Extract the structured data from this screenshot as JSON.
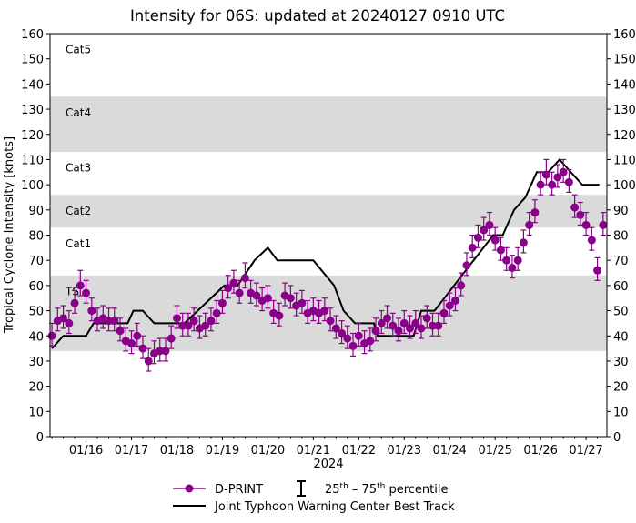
{
  "chart_data": {
    "type": "scatter",
    "title": "Intensity for 06S: updated at 20240127 0910 UTC",
    "xlabel": "2024",
    "ylabel": "Tropical Cyclone Intensity [knots]",
    "xlim": [
      "2024-01-15T05:00",
      "2024-01-27T11:00"
    ],
    "ylim": [
      0,
      160
    ],
    "x_ticks": [
      {
        "t": "2024-01-16T00:00",
        "label": "01/16"
      },
      {
        "t": "2024-01-17T00:00",
        "label": "01/17"
      },
      {
        "t": "2024-01-18T00:00",
        "label": "01/18"
      },
      {
        "t": "2024-01-19T00:00",
        "label": "01/19"
      },
      {
        "t": "2024-01-20T00:00",
        "label": "01/20"
      },
      {
        "t": "2024-01-21T00:00",
        "label": "01/21"
      },
      {
        "t": "2024-01-22T00:00",
        "label": "01/22"
      },
      {
        "t": "2024-01-23T00:00",
        "label": "01/23"
      },
      {
        "t": "2024-01-24T00:00",
        "label": "01/24"
      },
      {
        "t": "2024-01-25T00:00",
        "label": "01/25"
      },
      {
        "t": "2024-01-26T00:00",
        "label": "01/26"
      },
      {
        "t": "2024-01-27T00:00",
        "label": "01/27"
      }
    ],
    "y_ticks": [
      0,
      10,
      20,
      30,
      40,
      50,
      60,
      70,
      80,
      90,
      100,
      110,
      120,
      130,
      140,
      150,
      160
    ],
    "grid": false,
    "category_bands": [
      {
        "label": "TS",
        "from": 34,
        "to": 64,
        "shaded": true
      },
      {
        "label": "Cat1",
        "from": 64,
        "to": 83,
        "shaded": false
      },
      {
        "label": "Cat2",
        "from": 83,
        "to": 96,
        "shaded": true
      },
      {
        "label": "Cat3",
        "from": 96,
        "to": 113,
        "shaded": false
      },
      {
        "label": "Cat4",
        "from": 113,
        "to": 135,
        "shaded": true
      },
      {
        "label": "Cat5",
        "from": 135,
        "to": 160,
        "shaded": false
      }
    ],
    "band_color": "#dadada",
    "legend": {
      "placement": "bottom",
      "dprint": "D-PRINT",
      "percentile_prefix_a": "25",
      "percentile_sup_a": "th",
      "percentile_dash": " – ",
      "percentile_prefix_b": "75",
      "percentile_sup_b": "th",
      "percentile_suffix": " percentile",
      "best_track": "Joint Typhoon Warning Center Best Track"
    },
    "series": [
      {
        "name": "D-PRINT",
        "color": "#8b008b",
        "times": [
          "2024-01-15T06:00",
          "2024-01-15T09:00",
          "2024-01-15T12:00",
          "2024-01-15T15:00",
          "2024-01-15T18:00",
          "2024-01-15T21:00",
          "2024-01-16T00:00",
          "2024-01-16T03:00",
          "2024-01-16T06:00",
          "2024-01-16T09:00",
          "2024-01-16T12:00",
          "2024-01-16T15:00",
          "2024-01-16T18:00",
          "2024-01-16T21:00",
          "2024-01-17T00:00",
          "2024-01-17T03:00",
          "2024-01-17T06:00",
          "2024-01-17T09:00",
          "2024-01-17T12:00",
          "2024-01-17T15:00",
          "2024-01-17T18:00",
          "2024-01-17T21:00",
          "2024-01-18T00:00",
          "2024-01-18T03:00",
          "2024-01-18T06:00",
          "2024-01-18T09:00",
          "2024-01-18T12:00",
          "2024-01-18T15:00",
          "2024-01-18T18:00",
          "2024-01-18T21:00",
          "2024-01-19T00:00",
          "2024-01-19T03:00",
          "2024-01-19T06:00",
          "2024-01-19T09:00",
          "2024-01-19T12:00",
          "2024-01-19T15:00",
          "2024-01-19T18:00",
          "2024-01-19T21:00",
          "2024-01-20T00:00",
          "2024-01-20T03:00",
          "2024-01-20T06:00",
          "2024-01-20T09:00",
          "2024-01-20T12:00",
          "2024-01-20T15:00",
          "2024-01-20T18:00",
          "2024-01-20T21:00",
          "2024-01-21T00:00",
          "2024-01-21T03:00",
          "2024-01-21T06:00",
          "2024-01-21T09:00",
          "2024-01-21T12:00",
          "2024-01-21T15:00",
          "2024-01-21T18:00",
          "2024-01-21T21:00",
          "2024-01-22T00:00",
          "2024-01-22T03:00",
          "2024-01-22T06:00",
          "2024-01-22T09:00",
          "2024-01-22T12:00",
          "2024-01-22T15:00",
          "2024-01-22T18:00",
          "2024-01-22T21:00",
          "2024-01-23T00:00",
          "2024-01-23T03:00",
          "2024-01-23T06:00",
          "2024-01-23T09:00",
          "2024-01-23T12:00",
          "2024-01-23T15:00",
          "2024-01-23T18:00",
          "2024-01-23T21:00",
          "2024-01-24T00:00",
          "2024-01-24T03:00",
          "2024-01-24T06:00",
          "2024-01-24T09:00",
          "2024-01-24T12:00",
          "2024-01-24T15:00",
          "2024-01-24T18:00",
          "2024-01-24T21:00",
          "2024-01-25T00:00",
          "2024-01-25T03:00",
          "2024-01-25T06:00",
          "2024-01-25T09:00",
          "2024-01-25T12:00",
          "2024-01-25T15:00",
          "2024-01-25T18:00",
          "2024-01-25T21:00",
          "2024-01-26T00:00",
          "2024-01-26T03:00",
          "2024-01-26T06:00",
          "2024-01-26T09:00",
          "2024-01-26T12:00",
          "2024-01-26T15:00",
          "2024-01-26T18:00",
          "2024-01-26T21:00",
          "2024-01-27T00:00",
          "2024-01-27T03:00",
          "2024-01-27T06:00",
          "2024-01-27T09:00"
        ],
        "values": [
          40,
          46,
          47,
          45,
          53,
          60,
          57,
          50,
          46,
          47,
          46,
          46,
          42,
          38,
          37,
          40,
          35,
          30,
          33,
          34,
          34,
          39,
          47,
          44,
          44,
          46,
          43,
          44,
          46,
          49,
          53,
          59,
          61,
          57,
          63,
          57,
          56,
          54,
          55,
          49,
          48,
          56,
          55,
          52,
          53,
          49,
          50,
          49,
          50,
          46,
          43,
          41,
          39,
          36,
          40,
          37,
          38,
          42,
          45,
          47,
          44,
          42,
          45,
          43,
          45,
          43,
          47,
          44,
          44,
          49,
          52,
          54,
          60,
          68,
          75,
          79,
          82,
          84,
          78,
          74,
          70,
          67,
          70,
          77,
          84,
          89,
          100,
          104,
          100,
          103,
          105,
          101,
          91,
          88,
          84,
          78,
          66,
          84
        ],
        "p25": [
          36,
          42,
          43,
          41,
          49,
          56,
          53,
          46,
          42,
          43,
          42,
          42,
          38,
          34,
          33,
          36,
          31,
          26,
          29,
          30,
          30,
          35,
          43,
          40,
          40,
          42,
          39,
          40,
          42,
          45,
          49,
          55,
          57,
          53,
          59,
          53,
          52,
          50,
          51,
          45,
          44,
          52,
          51,
          48,
          49,
          45,
          46,
          45,
          46,
          42,
          39,
          37,
          35,
          32,
          36,
          33,
          34,
          38,
          41,
          43,
          40,
          38,
          41,
          39,
          41,
          39,
          43,
          40,
          40,
          45,
          48,
          50,
          56,
          64,
          71,
          75,
          78,
          80,
          74,
          70,
          66,
          63,
          66,
          73,
          80,
          85,
          96,
          100,
          96,
          99,
          101,
          97,
          87,
          84,
          80,
          74,
          62,
          80
        ],
        "p75": [
          45,
          51,
          52,
          50,
          58,
          66,
          62,
          55,
          51,
          52,
          51,
          51,
          47,
          43,
          42,
          45,
          40,
          35,
          38,
          39,
          39,
          44,
          52,
          49,
          49,
          51,
          48,
          49,
          51,
          54,
          58,
          64,
          66,
          62,
          69,
          62,
          61,
          59,
          60,
          54,
          53,
          61,
          60,
          57,
          58,
          54,
          55,
          54,
          55,
          51,
          48,
          46,
          44,
          41,
          45,
          42,
          43,
          47,
          50,
          52,
          49,
          47,
          50,
          48,
          50,
          48,
          52,
          49,
          49,
          54,
          57,
          59,
          65,
          73,
          80,
          84,
          87,
          89,
          83,
          79,
          75,
          72,
          75,
          82,
          89,
          94,
          105,
          110,
          105,
          108,
          110,
          106,
          96,
          93,
          89,
          83,
          71,
          89
        ]
      },
      {
        "name": "Joint Typhoon Warning Center Best Track",
        "color": "#000000",
        "times": [
          "2024-01-15T06:00",
          "2024-01-15T12:00",
          "2024-01-16T00:00",
          "2024-01-16T04:00",
          "2024-01-16T22:00",
          "2024-01-17T01:00",
          "2024-01-17T06:00",
          "2024-01-17T12:00",
          "2024-01-18T04:00",
          "2024-01-19T01:00",
          "2024-01-19T08:00",
          "2024-01-19T17:00",
          "2024-01-20T00:00",
          "2024-01-20T05:00",
          "2024-01-21T00:00",
          "2024-01-21T11:00",
          "2024-01-21T16:00",
          "2024-01-21T22:00",
          "2024-01-22T08:00",
          "2024-01-22T10:00",
          "2024-01-23T05:00",
          "2024-01-23T09:00",
          "2024-01-23T16:00",
          "2024-01-24T23:00",
          "2024-01-25T04:00",
          "2024-01-25T10:00",
          "2024-01-25T16:00",
          "2024-01-25T19:00",
          "2024-01-25T22:00",
          "2024-01-26T04:00",
          "2024-01-26T10:00",
          "2024-01-26T22:00",
          "2024-01-27T07:00"
        ],
        "values": [
          35,
          40,
          40,
          45,
          45,
          50,
          50,
          45,
          45,
          60,
          60,
          70,
          75,
          70,
          70,
          60,
          50,
          45,
          45,
          40,
          40,
          50,
          50,
          80,
          80,
          90,
          95,
          100,
          105,
          105,
          110,
          100,
          100
        ]
      }
    ]
  }
}
